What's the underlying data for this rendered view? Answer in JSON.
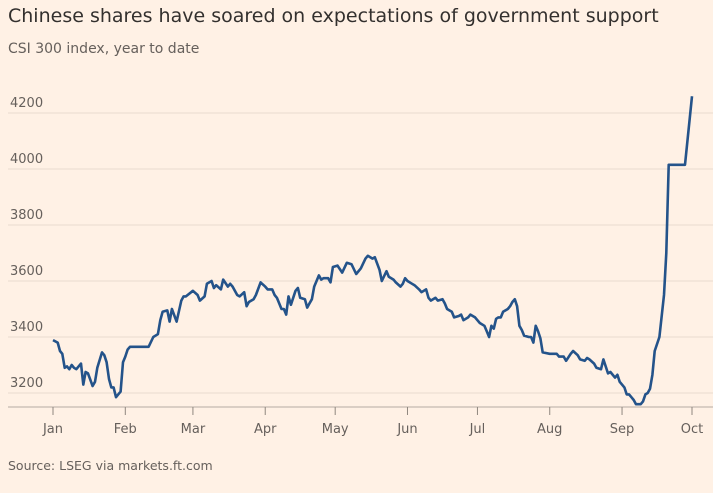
{
  "chart_data": {
    "type": "line",
    "title": "Chinese shares have soared on expectations of government support",
    "subtitle": "CSI 300 index, year to date",
    "source": "Source: LSEG via markets.ft.com",
    "x": [
      0,
      2,
      3,
      4,
      5,
      6,
      7,
      8,
      9,
      10,
      12,
      13,
      14,
      15,
      17,
      18,
      19,
      21,
      22,
      23,
      24,
      25,
      26,
      27,
      29,
      30,
      31,
      32,
      33,
      35,
      41,
      43,
      45,
      46,
      47,
      49,
      50,
      51,
      53,
      55,
      56,
      57,
      60,
      62,
      63,
      65,
      66,
      68,
      69,
      70,
      72,
      73,
      75,
      76,
      77,
      79,
      80,
      82,
      83,
      84,
      86,
      87,
      89,
      91,
      92,
      94,
      95,
      96,
      98,
      99,
      100,
      101,
      102,
      104,
      105,
      106,
      108,
      109,
      110,
      111,
      112,
      114,
      115,
      116,
      118,
      119,
      120,
      122,
      124,
      126,
      128,
      130,
      132,
      134,
      135,
      137,
      138,
      140,
      141,
      143,
      144,
      146,
      147,
      149,
      150,
      151,
      152,
      154,
      155,
      157,
      158,
      160,
      161,
      162,
      164,
      165,
      167,
      168,
      169,
      171,
      172,
      174,
      175,
      176,
      178,
      179,
      181,
      182,
      183,
      185,
      186,
      187,
      188,
      189,
      190,
      191,
      192,
      193,
      195,
      196,
      197,
      198,
      199,
      200,
      201,
      202,
      204,
      205,
      206,
      207,
      208,
      209,
      210,
      213,
      214,
      216,
      217,
      219,
      220,
      222,
      223,
      225,
      226,
      228,
      229,
      230,
      232,
      233,
      235,
      236,
      238,
      239,
      241,
      242,
      243,
      245,
      246,
      247,
      248,
      249,
      250,
      252,
      253,
      254,
      255,
      256,
      257,
      258,
      260,
      262,
      263,
      264,
      268,
      271,
      274
    ],
    "series": [
      {
        "name": "CSI 300",
        "color": "#24538a",
        "values": [
          3389,
          3380,
          3350,
          3340,
          3290,
          3295,
          3285,
          3300,
          3290,
          3285,
          3305,
          3230,
          3275,
          3270,
          3225,
          3240,
          3290,
          3345,
          3335,
          3310,
          3250,
          3220,
          3220,
          3185,
          3205,
          3310,
          3330,
          3355,
          3365,
          3365,
          3365,
          3400,
          3410,
          3460,
          3490,
          3495,
          3455,
          3500,
          3455,
          3530,
          3545,
          3545,
          3565,
          3550,
          3530,
          3545,
          3590,
          3600,
          3575,
          3585,
          3570,
          3605,
          3580,
          3590,
          3580,
          3550,
          3545,
          3560,
          3510,
          3525,
          3535,
          3550,
          3595,
          3580,
          3570,
          3570,
          3550,
          3540,
          3500,
          3500,
          3480,
          3545,
          3515,
          3565,
          3575,
          3540,
          3535,
          3505,
          3520,
          3535,
          3580,
          3620,
          3605,
          3610,
          3610,
          3595,
          3650,
          3655,
          3630,
          3665,
          3660,
          3625,
          3645,
          3680,
          3690,
          3680,
          3685,
          3640,
          3600,
          3635,
          3615,
          3605,
          3595,
          3580,
          3590,
          3610,
          3600,
          3590,
          3585,
          3570,
          3560,
          3570,
          3540,
          3530,
          3540,
          3530,
          3535,
          3520,
          3500,
          3490,
          3470,
          3475,
          3480,
          3460,
          3470,
          3480,
          3470,
          3460,
          3450,
          3440,
          3420,
          3400,
          3440,
          3430,
          3465,
          3470,
          3470,
          3490,
          3500,
          3510,
          3525,
          3535,
          3510,
          3440,
          3425,
          3405,
          3400,
          3400,
          3380,
          3440,
          3420,
          3395,
          3345,
          3340,
          3340,
          3340,
          3330,
          3330,
          3315,
          3340,
          3350,
          3335,
          3320,
          3315,
          3325,
          3320,
          3305,
          3290,
          3285,
          3320,
          3270,
          3275,
          3255,
          3265,
          3240,
          3220,
          3195,
          3195,
          3185,
          3175,
          3160,
          3160,
          3170,
          3195,
          3200,
          3215,
          3265,
          3350,
          3400,
          3550,
          3700,
          4015,
          4015,
          4015,
          4260
        ]
      }
    ],
    "xlim": [
      0,
      274
    ],
    "xticks": [
      {
        "value": 0,
        "label": "Jan"
      },
      {
        "value": 31,
        "label": "Feb"
      },
      {
        "value": 60,
        "label": "Mar"
      },
      {
        "value": 91,
        "label": "Apr"
      },
      {
        "value": 121,
        "label": "May"
      },
      {
        "value": 152,
        "label": "Jun"
      },
      {
        "value": 182,
        "label": "Jul"
      },
      {
        "value": 213,
        "label": "Aug"
      },
      {
        "value": 244,
        "label": "Sep"
      },
      {
        "value": 274,
        "label": "Oct"
      }
    ],
    "ylim": [
      3150,
      4300
    ],
    "yticks": [
      3200,
      3400,
      3600,
      3800,
      4000,
      4200
    ],
    "grid": true
  }
}
